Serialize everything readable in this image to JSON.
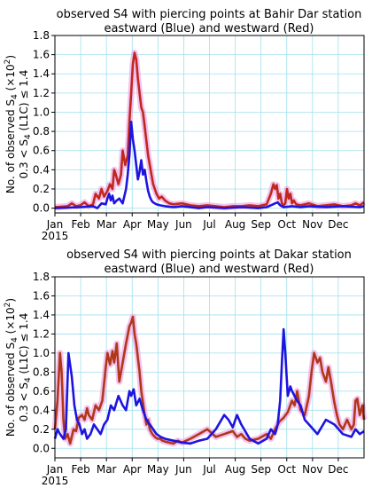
{
  "chart_data": [
    {
      "type": "line",
      "title": "observed S4 with piercing points at Bahir Dar station",
      "subtitle": "eastward (Blue) and westward (Red)",
      "ylabel_line1": "No. of observed S",
      "ylabel_line1_sub": "4",
      "ylabel_line1_suffix": " (×10",
      "ylabel_line1_sup": "2",
      "ylabel_line1_end": ")",
      "ylabel_line2": "0.3 < S",
      "ylabel_line2_sub": "4",
      "ylabel_line2_end": " (L1C) ≤ 1.4",
      "year_label": "2015",
      "xticks": [
        "Jan",
        "Feb",
        "Mar",
        "Apr",
        "May",
        "Jun",
        "Jul",
        "Aug",
        "Sep",
        "Oct",
        "Nov",
        "Dec"
      ],
      "xlim": [
        0,
        365
      ],
      "ylim": [
        -0.05,
        1.8
      ],
      "yticks": [
        "0.0",
        "0.2",
        "0.4",
        "0.6",
        "0.8",
        "1.0",
        "1.2",
        "1.4",
        "1.6",
        "1.8"
      ],
      "grid": true,
      "series": [
        {
          "color": "#c0281e",
          "shade": "#f0a8e8",
          "x": [
            0,
            15,
            20,
            25,
            30,
            35,
            40,
            45,
            48,
            52,
            55,
            58,
            62,
            65,
            68,
            70,
            72,
            75,
            78,
            80,
            83,
            86,
            88,
            90,
            92,
            94,
            96,
            98,
            100,
            102,
            104,
            106,
            108,
            110,
            112,
            114,
            116,
            118,
            120,
            123,
            126,
            130,
            135,
            140,
            150,
            160,
            170,
            180,
            190,
            200,
            210,
            220,
            230,
            240,
            250,
            255,
            258,
            260,
            262,
            264,
            266,
            268,
            270,
            272,
            274,
            276,
            278,
            280,
            282,
            285,
            290,
            300,
            310,
            320,
            330,
            340,
            350,
            355,
            360,
            365
          ],
          "y": [
            0.01,
            0.02,
            0.05,
            0.02,
            0.03,
            0.06,
            0.02,
            0.04,
            0.15,
            0.1,
            0.2,
            0.12,
            0.18,
            0.25,
            0.2,
            0.4,
            0.35,
            0.25,
            0.35,
            0.6,
            0.45,
            0.55,
            0.9,
            1.2,
            1.5,
            1.62,
            1.55,
            1.35,
            1.2,
            1.05,
            1.0,
            0.85,
            0.7,
            0.55,
            0.45,
            0.35,
            0.25,
            0.2,
            0.15,
            0.1,
            0.12,
            0.08,
            0.05,
            0.04,
            0.05,
            0.03,
            0.02,
            0.03,
            0.02,
            0.01,
            0.02,
            0.02,
            0.03,
            0.02,
            0.04,
            0.15,
            0.25,
            0.2,
            0.24,
            0.1,
            0.15,
            0.05,
            0.03,
            0.05,
            0.2,
            0.1,
            0.15,
            0.05,
            0.08,
            0.04,
            0.03,
            0.05,
            0.02,
            0.03,
            0.04,
            0.02,
            0.03,
            0.05,
            0.03,
            0.06
          ]
        },
        {
          "color": "#1e14e0",
          "x": [
            0,
            30,
            45,
            50,
            55,
            60,
            62,
            64,
            66,
            68,
            70,
            73,
            76,
            80,
            84,
            86,
            88,
            90,
            92,
            94,
            96,
            98,
            100,
            102,
            104,
            106,
            108,
            110,
            112,
            114,
            116,
            118,
            120,
            124,
            130,
            140,
            150,
            160,
            170,
            180,
            200,
            220,
            240,
            250,
            255,
            260,
            263,
            266,
            270,
            280,
            290,
            300,
            320,
            340,
            360,
            365
          ],
          "y": [
            0.0,
            0.01,
            0.02,
            0.0,
            0.05,
            0.04,
            0.1,
            0.15,
            0.08,
            0.13,
            0.05,
            0.08,
            0.1,
            0.05,
            0.2,
            0.35,
            0.55,
            0.9,
            0.72,
            0.6,
            0.45,
            0.3,
            0.38,
            0.5,
            0.35,
            0.4,
            0.28,
            0.18,
            0.12,
            0.08,
            0.06,
            0.05,
            0.04,
            0.03,
            0.02,
            0.01,
            0.02,
            0.01,
            0.0,
            0.01,
            0.0,
            0.01,
            0.0,
            0.01,
            0.03,
            0.05,
            0.06,
            0.03,
            0.01,
            0.02,
            0.01,
            0.02,
            0.01,
            0.02,
            0.01,
            0.02
          ]
        }
      ]
    },
    {
      "type": "line",
      "title": "observed S4 with piercing points at Dakar station",
      "subtitle": "eastward (Blue) and westward (Red)",
      "ylabel_line1": "No. of observed S",
      "ylabel_line1_sub": "4",
      "ylabel_line1_suffix": " (×10",
      "ylabel_line1_sup": "2",
      "ylabel_line1_end": ")",
      "ylabel_line2": "0.3 < S",
      "ylabel_line2_sub": "4",
      "ylabel_line2_end": " (L1C) ≤ 1.4",
      "year_label": "2015",
      "xticks": [
        "Jan",
        "Feb",
        "Mar",
        "Apr",
        "May",
        "Jun",
        "Jul",
        "Aug",
        "Sep",
        "Oct",
        "Nov",
        "Dec"
      ],
      "xlim": [
        0,
        365
      ],
      "ylim": [
        -0.1,
        1.8
      ],
      "yticks": [
        "0.0",
        "0.2",
        "0.4",
        "0.6",
        "0.8",
        "1.0",
        "1.2",
        "1.4",
        "1.6",
        "1.8"
      ],
      "grid": true,
      "series": [
        {
          "color": "#b03818",
          "shade": "#f0a8e8",
          "x": [
            0,
            3,
            6,
            8,
            10,
            12,
            15,
            18,
            22,
            25,
            28,
            32,
            35,
            38,
            40,
            44,
            48,
            52,
            56,
            60,
            62,
            65,
            68,
            70,
            73,
            76,
            80,
            84,
            88,
            90,
            92,
            94,
            96,
            98,
            100,
            102,
            104,
            106,
            108,
            110,
            112,
            115,
            118,
            121,
            124,
            127,
            130,
            135,
            140,
            145,
            150,
            160,
            170,
            180,
            190,
            200,
            210,
            215,
            220,
            225,
            230,
            240,
            250,
            255,
            260,
            265,
            270,
            275,
            280,
            283,
            286,
            290,
            295,
            300,
            303,
            306,
            310,
            313,
            316,
            320,
            323,
            326,
            330,
            333,
            336,
            340,
            345,
            350,
            353,
            355,
            357,
            360,
            363,
            365
          ],
          "y": [
            0.2,
            0.5,
            1.0,
            0.8,
            0.3,
            0.1,
            0.15,
            0.05,
            0.2,
            0.18,
            0.32,
            0.35,
            0.3,
            0.42,
            0.35,
            0.3,
            0.45,
            0.4,
            0.5,
            0.85,
            1.0,
            0.88,
            1.02,
            0.9,
            1.1,
            0.7,
            0.9,
            1.1,
            1.28,
            1.32,
            1.38,
            1.2,
            1.1,
            0.95,
            0.8,
            0.6,
            0.48,
            0.35,
            0.25,
            0.3,
            0.2,
            0.15,
            0.12,
            0.1,
            0.1,
            0.08,
            0.07,
            0.06,
            0.05,
            0.08,
            0.06,
            0.1,
            0.15,
            0.2,
            0.12,
            0.15,
            0.18,
            0.12,
            0.15,
            0.1,
            0.08,
            0.1,
            0.15,
            0.1,
            0.2,
            0.28,
            0.32,
            0.38,
            0.5,
            0.45,
            0.6,
            0.4,
            0.35,
            0.55,
            0.8,
            1.0,
            0.9,
            0.95,
            0.8,
            0.7,
            0.85,
            0.7,
            0.48,
            0.35,
            0.25,
            0.2,
            0.3,
            0.2,
            0.25,
            0.5,
            0.52,
            0.35,
            0.45,
            0.3
          ]
        },
        {
          "color": "#1e14e0",
          "x": [
            0,
            3,
            6,
            10,
            13,
            16,
            20,
            23,
            26,
            29,
            32,
            35,
            38,
            42,
            46,
            50,
            54,
            58,
            62,
            66,
            70,
            75,
            80,
            84,
            88,
            90,
            93,
            96,
            100,
            104,
            108,
            112,
            116,
            120,
            125,
            130,
            140,
            150,
            160,
            170,
            180,
            190,
            200,
            205,
            210,
            215,
            220,
            230,
            240,
            250,
            255,
            260,
            263,
            266,
            268,
            270,
            272,
            275,
            278,
            280,
            283,
            286,
            290,
            295,
            300,
            305,
            310,
            320,
            330,
            340,
            350,
            355,
            360,
            365
          ],
          "y": [
            0.1,
            0.2,
            0.15,
            0.1,
            0.2,
            1.0,
            0.75,
            0.45,
            0.3,
            0.25,
            0.15,
            0.2,
            0.1,
            0.15,
            0.25,
            0.2,
            0.15,
            0.25,
            0.3,
            0.45,
            0.4,
            0.55,
            0.45,
            0.4,
            0.6,
            0.55,
            0.62,
            0.45,
            0.52,
            0.4,
            0.3,
            0.25,
            0.2,
            0.15,
            0.12,
            0.1,
            0.08,
            0.06,
            0.05,
            0.08,
            0.1,
            0.2,
            0.35,
            0.3,
            0.22,
            0.35,
            0.25,
            0.1,
            0.05,
            0.1,
            0.2,
            0.15,
            0.25,
            0.5,
            0.9,
            1.25,
            1.0,
            0.55,
            0.65,
            0.6,
            0.55,
            0.5,
            0.45,
            0.3,
            0.25,
            0.2,
            0.15,
            0.3,
            0.25,
            0.15,
            0.12,
            0.2,
            0.15,
            0.18
          ]
        }
      ]
    }
  ]
}
